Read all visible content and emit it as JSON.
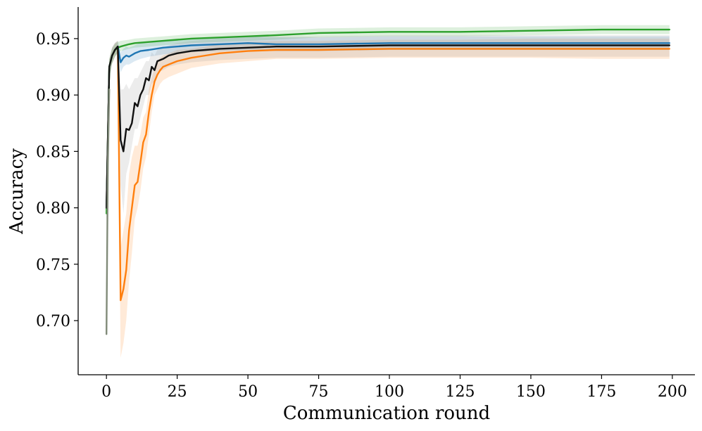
{
  "chart_data": {
    "type": "line",
    "title": "",
    "xlabel": "Communication round",
    "ylabel": "Accuracy",
    "xlim": [
      -10,
      208
    ],
    "ylim": [
      0.652,
      0.978
    ],
    "xticks": [
      0,
      25,
      50,
      75,
      100,
      125,
      150,
      175,
      200
    ],
    "yticks": [
      0.7,
      0.75,
      0.8,
      0.85,
      0.9,
      0.95
    ],
    "xtick_labels": [
      "0",
      "25",
      "50",
      "75",
      "100",
      "125",
      "150",
      "175",
      "200"
    ],
    "ytick_labels": [
      "0.70",
      "0.75",
      "0.80",
      "0.85",
      "0.90",
      "0.95"
    ],
    "grid": false,
    "legend": "none",
    "series": [
      {
        "color": "#ff7f0e",
        "band_color": "#ff7f0e",
        "x": [
          0,
          1,
          2,
          3,
          4,
          5,
          6,
          7,
          8,
          9,
          10,
          11,
          12,
          13,
          14,
          15,
          16,
          17,
          18,
          19,
          20,
          22,
          25,
          30,
          35,
          40,
          50,
          60,
          75,
          100,
          125,
          150,
          175,
          199
        ],
        "y": [
          0.8,
          0.925,
          0.935,
          0.94,
          0.943,
          0.718,
          0.728,
          0.745,
          0.78,
          0.8,
          0.82,
          0.823,
          0.84,
          0.858,
          0.865,
          0.885,
          0.9,
          0.912,
          0.918,
          0.922,
          0.925,
          0.927,
          0.93,
          0.933,
          0.935,
          0.937,
          0.939,
          0.94,
          0.94,
          0.941,
          0.941,
          0.941,
          0.941,
          0.941
        ],
        "lower": [
          0.79,
          0.915,
          0.928,
          0.934,
          0.938,
          0.667,
          0.68,
          0.7,
          0.735,
          0.76,
          0.79,
          0.8,
          0.815,
          0.835,
          0.845,
          0.865,
          0.885,
          0.9,
          0.905,
          0.91,
          0.913,
          0.916,
          0.919,
          0.924,
          0.926,
          0.928,
          0.93,
          0.932,
          0.932,
          0.933,
          0.933,
          0.933,
          0.932,
          0.932
        ],
        "upper": [
          0.81,
          0.932,
          0.942,
          0.946,
          0.948,
          0.765,
          0.78,
          0.795,
          0.83,
          0.845,
          0.855,
          0.855,
          0.865,
          0.88,
          0.885,
          0.905,
          0.915,
          0.925,
          0.93,
          0.933,
          0.935,
          0.937,
          0.94,
          0.941,
          0.943,
          0.945,
          0.947,
          0.948,
          0.948,
          0.949,
          0.949,
          0.95,
          0.95,
          0.95
        ]
      },
      {
        "color": "#1f77b4",
        "band_color": "#1f77b4",
        "x": [
          0,
          1,
          2,
          3,
          4,
          5,
          6,
          7,
          8,
          10,
          12,
          15,
          20,
          25,
          30,
          40,
          50,
          60,
          75,
          100,
          125,
          150,
          175,
          199
        ],
        "y": [
          0.8,
          0.925,
          0.935,
          0.94,
          0.943,
          0.929,
          0.933,
          0.935,
          0.934,
          0.937,
          0.939,
          0.94,
          0.942,
          0.943,
          0.944,
          0.945,
          0.946,
          0.945,
          0.945,
          0.946,
          0.946,
          0.946,
          0.946,
          0.946
        ],
        "lower": [
          0.79,
          0.915,
          0.928,
          0.934,
          0.938,
          0.92,
          0.925,
          0.927,
          0.927,
          0.93,
          0.932,
          0.934,
          0.936,
          0.937,
          0.938,
          0.939,
          0.94,
          0.939,
          0.939,
          0.94,
          0.94,
          0.94,
          0.94,
          0.94
        ],
        "upper": [
          0.81,
          0.932,
          0.942,
          0.946,
          0.948,
          0.938,
          0.941,
          0.943,
          0.942,
          0.944,
          0.946,
          0.946,
          0.948,
          0.949,
          0.95,
          0.951,
          0.952,
          0.951,
          0.951,
          0.952,
          0.952,
          0.952,
          0.952,
          0.952
        ]
      },
      {
        "color": "#2ca02c",
        "band_color": "#2ca02c",
        "x": [
          0,
          1,
          2,
          3,
          4,
          5,
          8,
          10,
          15,
          20,
          25,
          30,
          40,
          50,
          60,
          75,
          100,
          125,
          150,
          175,
          199
        ],
        "y": [
          0.795,
          0.925,
          0.935,
          0.94,
          0.942,
          0.943,
          0.945,
          0.946,
          0.947,
          0.948,
          0.949,
          0.95,
          0.951,
          0.952,
          0.953,
          0.955,
          0.956,
          0.956,
          0.957,
          0.958,
          0.958
        ],
        "lower": [
          0.785,
          0.916,
          0.928,
          0.934,
          0.937,
          0.939,
          0.941,
          0.942,
          0.943,
          0.944,
          0.945,
          0.946,
          0.947,
          0.948,
          0.949,
          0.951,
          0.952,
          0.952,
          0.953,
          0.954,
          0.954
        ],
        "upper": [
          0.805,
          0.932,
          0.941,
          0.945,
          0.947,
          0.948,
          0.949,
          0.95,
          0.951,
          0.952,
          0.953,
          0.954,
          0.955,
          0.956,
          0.957,
          0.959,
          0.96,
          0.96,
          0.961,
          0.962,
          0.962
        ]
      },
      {
        "color": "#111111",
        "band_color": "#888888",
        "x": [
          0,
          1,
          2,
          3,
          4,
          5,
          6,
          7,
          8,
          9,
          10,
          11,
          12,
          13,
          14,
          15,
          16,
          17,
          18,
          20,
          22,
          25,
          30,
          35,
          40,
          50,
          60,
          75,
          100,
          125,
          150,
          175,
          199
        ],
        "y": [
          0.8,
          0.925,
          0.935,
          0.94,
          0.943,
          0.86,
          0.85,
          0.87,
          0.869,
          0.875,
          0.893,
          0.89,
          0.9,
          0.905,
          0.915,
          0.913,
          0.925,
          0.922,
          0.93,
          0.932,
          0.935,
          0.937,
          0.939,
          0.94,
          0.941,
          0.942,
          0.943,
          0.943,
          0.944,
          0.944,
          0.944,
          0.944,
          0.944
        ],
        "lower": [
          0.79,
          0.915,
          0.928,
          0.934,
          0.938,
          0.82,
          0.795,
          0.83,
          0.84,
          0.855,
          0.87,
          0.87,
          0.88,
          0.89,
          0.9,
          0.9,
          0.91,
          0.912,
          0.92,
          0.922,
          0.925,
          0.927,
          0.929,
          0.93,
          0.931,
          0.932,
          0.933,
          0.933,
          0.934,
          0.934,
          0.934,
          0.934,
          0.934
        ],
        "upper": [
          0.81,
          0.932,
          0.942,
          0.946,
          0.948,
          0.905,
          0.905,
          0.91,
          0.905,
          0.91,
          0.915,
          0.915,
          0.92,
          0.925,
          0.93,
          0.93,
          0.938,
          0.935,
          0.94,
          0.942,
          0.944,
          0.946,
          0.948,
          0.949,
          0.95,
          0.951,
          0.952,
          0.952,
          0.953,
          0.953,
          0.953,
          0.953,
          0.953
        ]
      },
      {
        "color": "#808a78",
        "band_color": "#808a78",
        "x": [
          0,
          0.5,
          1
        ],
        "y": [
          0.688,
          0.84,
          0.905
        ]
      }
    ]
  }
}
